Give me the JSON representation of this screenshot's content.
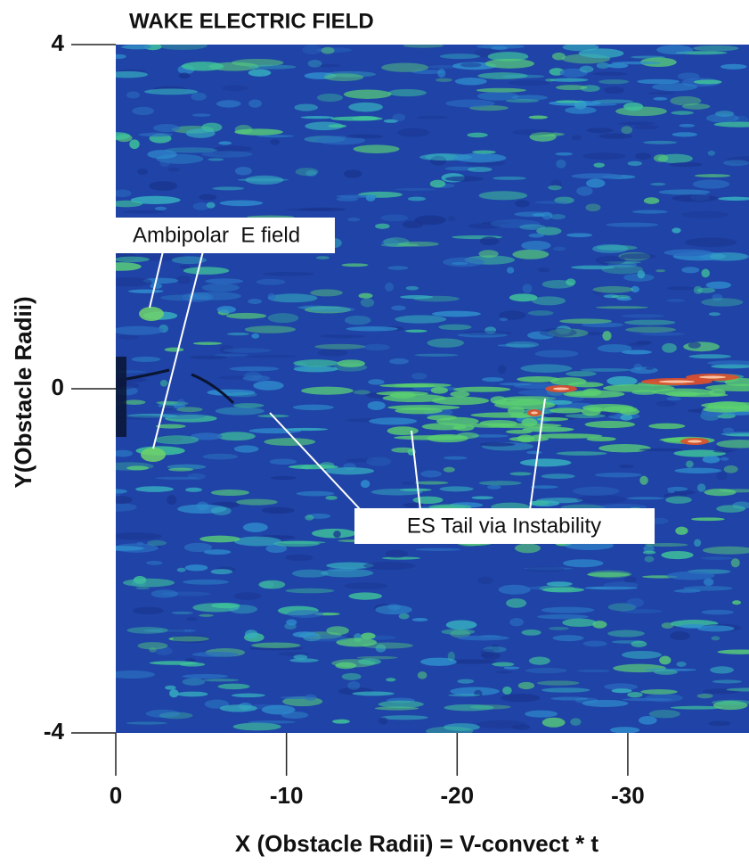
{
  "chart_data": {
    "type": "field-image",
    "title": "WAKE ELECTRIC FIELD",
    "x_label": "X (Obstacle Radii) = V-convect * t",
    "y_label": "Y(Obstacle Radii)",
    "xlim": [
      0,
      -37.1
    ],
    "xticks": [
      0,
      -10,
      -20,
      -30
    ],
    "ylim": [
      -4,
      4
    ],
    "yticks": [
      -4,
      0,
      4
    ],
    "annotations": [
      "Ambipolar  E field",
      "ES Tail via Instability"
    ]
  }
}
